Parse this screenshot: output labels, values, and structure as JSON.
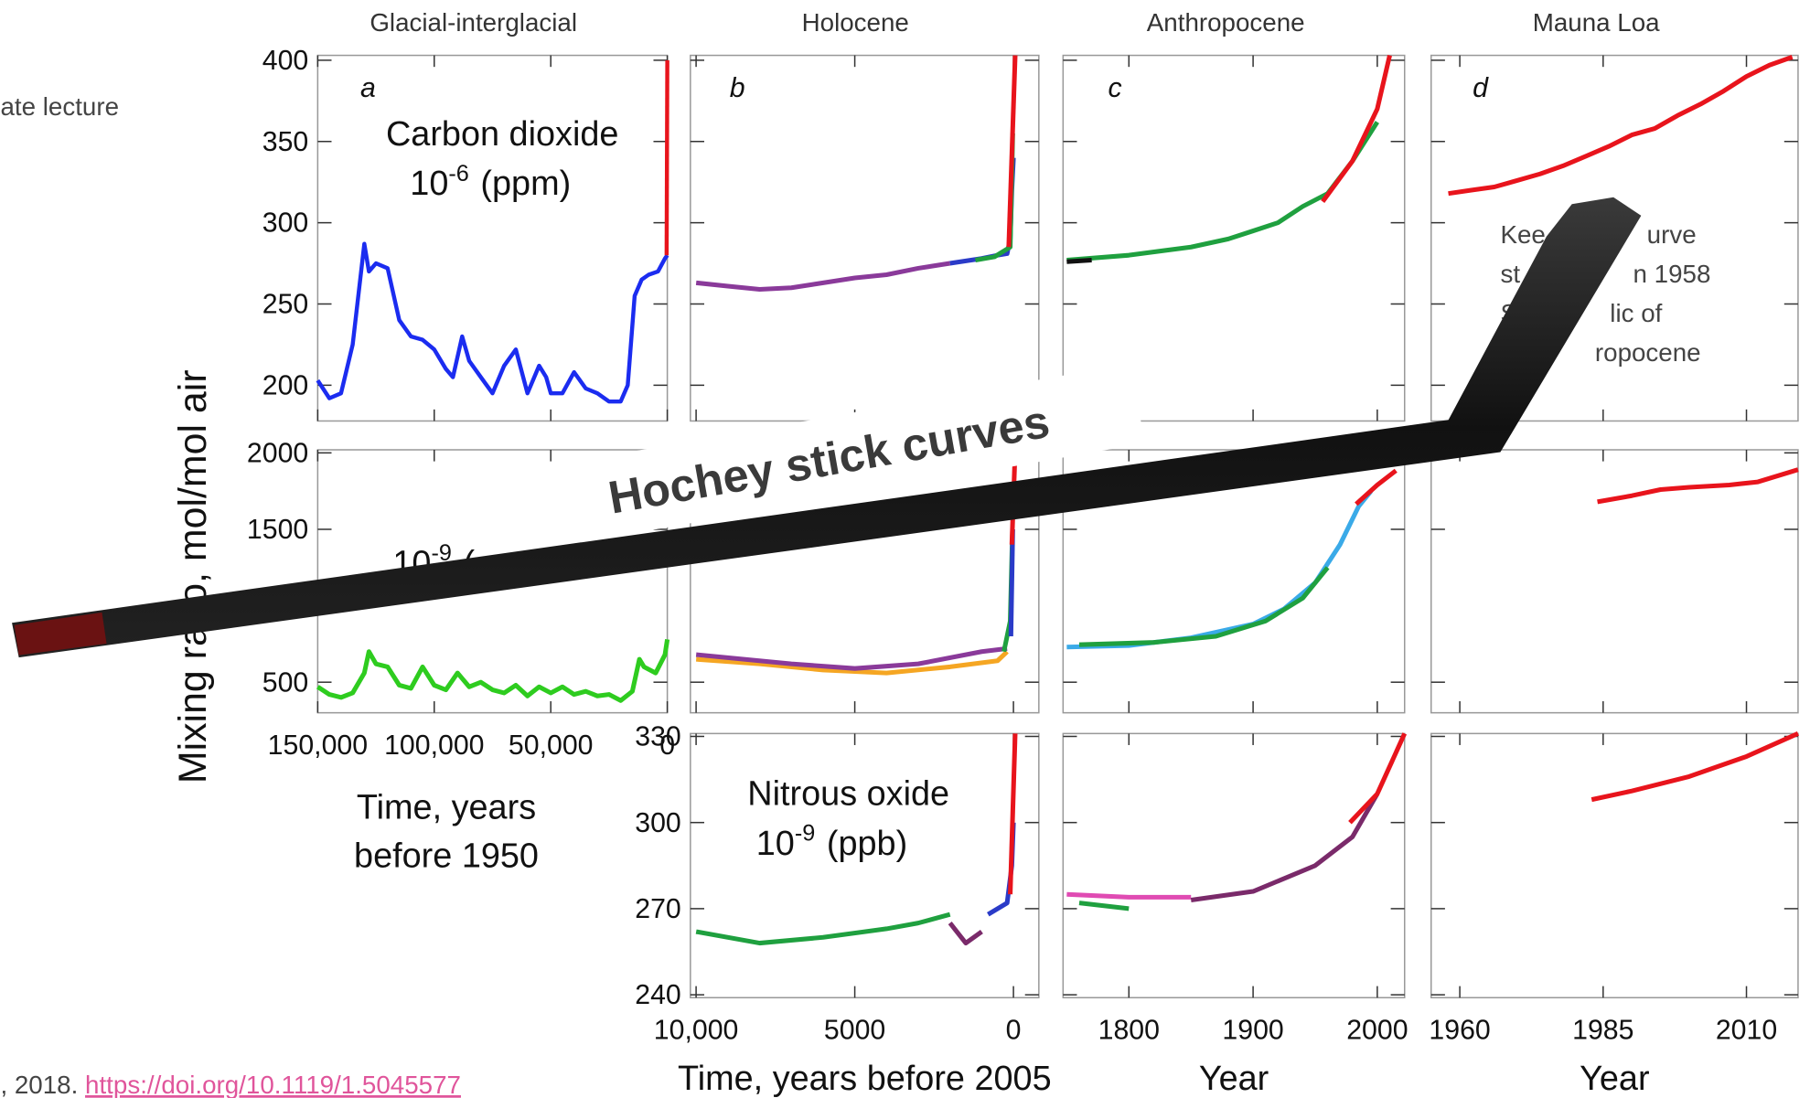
{
  "slide": {
    "header_fragment": "ate lecture",
    "citation": ", 2018.",
    "link": "https://doi.org/10.1119/1.5045577",
    "overlay_text": "Hochey stick curves",
    "y_label": "Mixing ratio, mol/mol air",
    "keeling_note": [
      [
        "Kee",
        "urve"
      ],
      [
        "st",
        "n 1958"
      ],
      [
        "S",
        "lic of"
      ],
      [
        "ropocene"
      ]
    ]
  },
  "chart_data": [
    {
      "type": "line",
      "title": "Glacial-interglacial",
      "panel_label": "a",
      "annotation": {
        "name": "Carbon dioxide",
        "power": "10",
        "exponent": "-6",
        "unit": "(ppm)"
      },
      "xlim": [
        150000,
        0
      ],
      "ylim": [
        178,
        403
      ],
      "yticks": [
        200,
        250,
        300,
        350,
        400
      ],
      "series": [
        {
          "color": "#1b2cf0",
          "x": [
            150000,
            145000,
            140000,
            135000,
            130000,
            128000,
            125000,
            120000,
            115000,
            110000,
            105000,
            100000,
            95000,
            92000,
            88000,
            85000,
            80000,
            75000,
            70000,
            65000,
            60000,
            55000,
            52000,
            50000,
            45000,
            40000,
            35000,
            30000,
            25000,
            20000,
            17000,
            14000,
            11000,
            8000,
            4000,
            1000,
            0
          ],
          "values": [
            203,
            192,
            195,
            225,
            287,
            270,
            275,
            272,
            240,
            230,
            228,
            222,
            210,
            205,
            230,
            215,
            205,
            195,
            212,
            222,
            195,
            212,
            205,
            195,
            195,
            208,
            198,
            195,
            190,
            190,
            200,
            255,
            265,
            268,
            270,
            278,
            280
          ]
        },
        {
          "color": "#e8141c",
          "x": [
            300,
            0
          ],
          "values": [
            280,
            400
          ]
        }
      ]
    },
    {
      "type": "line",
      "title": "Holocene",
      "panel_label": "b",
      "xlim": [
        10180,
        -800
      ],
      "ylim": [
        178,
        403
      ],
      "series": [
        {
          "color": "#8a3a9a",
          "x": [
            10000,
            9000,
            8000,
            7000,
            6000,
            5000,
            4000,
            3000,
            2000
          ],
          "values": [
            263,
            261,
            259,
            260,
            263,
            266,
            268,
            272,
            275
          ]
        },
        {
          "color": "#2a3bc8",
          "x": [
            2000,
            1000,
            500,
            200,
            100,
            50,
            0
          ],
          "values": [
            275,
            278,
            280,
            281,
            290,
            320,
            340
          ]
        },
        {
          "color": "#1fa03f",
          "x": [
            1200,
            600,
            100,
            20
          ],
          "values": [
            277,
            279,
            285,
            355
          ]
        },
        {
          "color": "#e8141c",
          "x": [
            150,
            -55
          ],
          "values": [
            285,
            403
          ]
        }
      ]
    },
    {
      "type": "line",
      "title": "Anthropocene",
      "panel_label": "c",
      "xlim": [
        1747,
        2022
      ],
      "ylim": [
        178,
        403
      ],
      "series": [
        {
          "color": "#1fa03f",
          "x": [
            1750,
            1800,
            1850,
            1880,
            1900,
            1920,
            1940,
            1960,
            1980,
            2000
          ],
          "values": [
            277,
            280,
            285,
            290,
            295,
            300,
            310,
            318,
            338,
            362
          ]
        },
        {
          "color": "#111111",
          "x": [
            1750,
            1770
          ],
          "values": [
            276,
            277
          ]
        },
        {
          "color": "#e8141c",
          "x": [
            1956,
            1980,
            2000,
            2010
          ],
          "values": [
            313,
            338,
            370,
            403
          ]
        }
      ]
    },
    {
      "type": "line",
      "title": "Mauna Loa",
      "panel_label": "d",
      "xlim": [
        1955,
        2019
      ],
      "ylim": [
        178,
        403
      ],
      "series": [
        {
          "color": "#e8141c",
          "x": [
            1958,
            1962,
            1966,
            1970,
            1974,
            1978,
            1982,
            1986,
            1990,
            1994,
            1998,
            2002,
            2006,
            2010,
            2014,
            2018
          ],
          "values": [
            318,
            320,
            322,
            326,
            330,
            335,
            341,
            347,
            354,
            358,
            366,
            373,
            381,
            390,
            397,
            402
          ]
        }
      ]
    },
    {
      "type": "line",
      "annotation": {
        "power": "10",
        "exponent": "-9",
        "unit": "("
      },
      "xlim": [
        150000,
        0
      ],
      "ylim": [
        300,
        2020
      ],
      "yticks": [
        500,
        1500,
        2000
      ],
      "xticks": [
        {
          "value": 150000,
          "label": "150,000"
        },
        {
          "value": 100000,
          "label": "100,000"
        },
        {
          "value": 50000,
          "label": "50,000"
        },
        0
      ],
      "x_label": [
        "Time, years",
        "before 1950"
      ],
      "series": [
        {
          "color": "#2ecc1f",
          "x": [
            150000,
            145000,
            140000,
            135000,
            130000,
            128000,
            125000,
            120000,
            115000,
            110000,
            105000,
            100000,
            95000,
            90000,
            85000,
            80000,
            75000,
            70000,
            65000,
            60000,
            55000,
            50000,
            45000,
            40000,
            35000,
            30000,
            25000,
            20000,
            15000,
            12000,
            10000,
            5000,
            1000,
            0
          ],
          "values": [
            470,
            420,
            400,
            430,
            560,
            700,
            620,
            600,
            480,
            460,
            600,
            480,
            450,
            560,
            470,
            500,
            450,
            430,
            480,
            410,
            470,
            430,
            470,
            420,
            440,
            410,
            420,
            380,
            440,
            650,
            600,
            560,
            680,
            780
          ]
        }
      ]
    },
    {
      "type": "line",
      "xlim": [
        10180,
        -800
      ],
      "ylim": [
        300,
        2020
      ],
      "series": [
        {
          "color": "#f5a623",
          "x": [
            10000,
            8000,
            6000,
            4000,
            2000,
            500,
            200
          ],
          "values": [
            650,
            620,
            580,
            560,
            600,
            640,
            700
          ]
        },
        {
          "color": "#8a3a9a",
          "x": [
            10000,
            7000,
            5000,
            3000,
            1000,
            200
          ],
          "values": [
            680,
            620,
            590,
            620,
            700,
            720
          ]
        },
        {
          "color": "#1fa03f",
          "x": [
            300,
            100,
            30
          ],
          "values": [
            700,
            900,
            1500
          ]
        },
        {
          "color": "#2a3bc8",
          "x": [
            80,
            20
          ],
          "values": [
            800,
            1500
          ]
        },
        {
          "color": "#e8141c",
          "x": [
            50,
            -55
          ],
          "values": [
            1400,
            2020
          ]
        }
      ]
    },
    {
      "type": "line",
      "xlim": [
        1747,
        2022
      ],
      "ylim": [
        300,
        2020
      ],
      "series": [
        {
          "color": "#3aaae8",
          "x": [
            1750,
            1800,
            1850,
            1900,
            1925,
            1950,
            1970,
            1985,
            1995
          ],
          "values": [
            730,
            740,
            790,
            880,
            980,
            1150,
            1400,
            1650,
            1750
          ]
        },
        {
          "color": "#1fa03f",
          "x": [
            1760,
            1820,
            1870,
            1910,
            1940,
            1960
          ],
          "values": [
            745,
            760,
            800,
            900,
            1050,
            1250
          ]
        },
        {
          "color": "#e8141c",
          "x": [
            1983,
            2000,
            2015
          ],
          "values": [
            1665,
            1790,
            1884
          ]
        }
      ]
    },
    {
      "type": "line",
      "xlim": [
        1955,
        2019
      ],
      "ylim": [
        300,
        2020
      ],
      "series": [
        {
          "color": "#e8141c",
          "x": [
            1984,
            1990,
            1995,
            2000,
            2007,
            2012,
            2019
          ],
          "values": [
            1680,
            1720,
            1760,
            1775,
            1790,
            1810,
            1890
          ]
        }
      ]
    },
    {
      "type": "line",
      "annotation": {
        "name": "Nitrous oxide",
        "power": "10",
        "exponent": "-9",
        "unit": "(ppb)"
      },
      "xlim": [
        10180,
        -800
      ],
      "ylim": [
        239,
        331
      ],
      "yticks": [
        240,
        270,
        300,
        330
      ],
      "xticks": [
        {
          "value": 10000,
          "label": "10,000"
        },
        5000,
        0
      ],
      "x_label": [
        "Time, years before 2005"
      ],
      "series": [
        {
          "color": "#1fa03f",
          "x": [
            10000,
            8000,
            6000,
            4000,
            3000,
            2000
          ],
          "values": [
            262,
            258,
            260,
            263,
            265,
            268
          ]
        },
        {
          "color": "#7a2a6a",
          "x": [
            2000,
            1500,
            1000
          ],
          "values": [
            265,
            258,
            262
          ]
        },
        {
          "color": "#2a3bc8",
          "x": [
            800,
            200,
            50,
            0
          ],
          "values": [
            268,
            272,
            285,
            300
          ]
        },
        {
          "color": "#e8141c",
          "x": [
            100,
            -55
          ],
          "values": [
            275,
            331
          ]
        }
      ]
    },
    {
      "type": "line",
      "xlim": [
        1747,
        2022
      ],
      "ylim": [
        239,
        331
      ],
      "xticks": [
        1800,
        1900,
        2000
      ],
      "x_label": [
        "Year"
      ],
      "series": [
        {
          "color": "#e04bb3",
          "x": [
            1750,
            1800,
            1850
          ],
          "values": [
            275,
            274,
            274
          ]
        },
        {
          "color": "#1fa03f",
          "x": [
            1760,
            1800
          ],
          "values": [
            272,
            270
          ]
        },
        {
          "color": "#7a2a6a",
          "x": [
            1850,
            1900,
            1950,
            1980,
            2000
          ],
          "values": [
            273,
            276,
            285,
            295,
            310
          ]
        },
        {
          "color": "#e8141c",
          "x": [
            1978,
            2000,
            2022
          ],
          "values": [
            300,
            310,
            331
          ]
        }
      ]
    },
    {
      "type": "line",
      "xlim": [
        1955,
        2019
      ],
      "ylim": [
        239,
        331
      ],
      "xticks": [
        1960,
        1985,
        2010
      ],
      "x_label": [
        "Year"
      ],
      "series": [
        {
          "color": "#e8141c",
          "x": [
            1983,
            1990,
            2000,
            2010,
            2019
          ],
          "values": [
            308,
            311,
            316,
            323,
            331
          ]
        }
      ]
    }
  ]
}
